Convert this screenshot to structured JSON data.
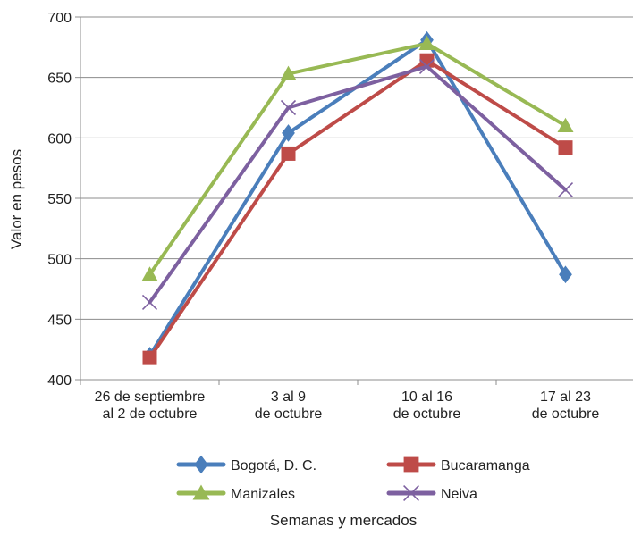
{
  "chart_data": {
    "type": "line",
    "title": "",
    "xlabel": "Semanas y mercados",
    "ylabel": "Valor en pesos",
    "ylim": [
      400,
      700
    ],
    "yticks": [
      400,
      450,
      500,
      550,
      600,
      650,
      700
    ],
    "grid": true,
    "legend_position": "bottom",
    "categories": [
      [
        "26 de septiembre",
        "al 2 de octubre"
      ],
      [
        "3 al 9",
        "de octubre"
      ],
      [
        "10 al 16",
        "de octubre"
      ],
      [
        "17 al 23",
        "de octubre"
      ]
    ],
    "series": [
      {
        "name": "Bogotá, D. C.",
        "color": "#4a7ebb",
        "marker": "diamond",
        "values": [
          420,
          604,
          681,
          487
        ]
      },
      {
        "name": "Bucaramanga",
        "color": "#be4b48",
        "marker": "square",
        "values": [
          418,
          587,
          664,
          592
        ]
      },
      {
        "name": "Manizales",
        "color": "#98b954",
        "marker": "triangle",
        "values": [
          487,
          653,
          678,
          610
        ]
      },
      {
        "name": "Neiva",
        "color": "#7d60a0",
        "marker": "cross",
        "values": [
          464,
          625,
          659,
          557
        ]
      }
    ]
  }
}
